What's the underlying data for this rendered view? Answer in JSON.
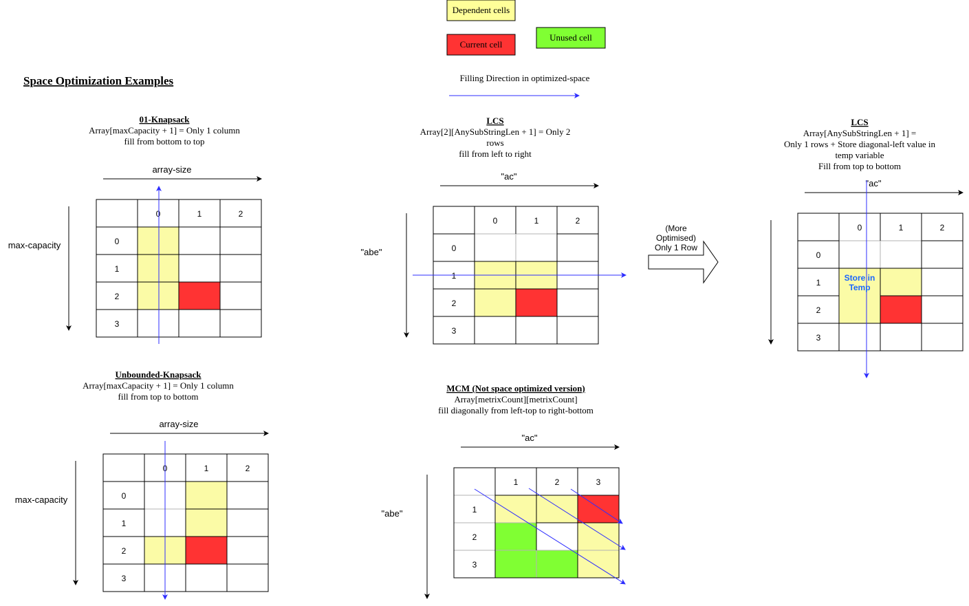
{
  "colors": {
    "dependent": "#ffff99",
    "dependent_in_grid": "#fbfba6",
    "current": "#ff3333",
    "unused": "#80ff33",
    "arrow_blue": "#2d2dff",
    "store_text": "#1a66ff",
    "grid_line": "#000000",
    "light_line": "#b3b3b3"
  },
  "legend": {
    "dependent": "Dependent cells",
    "current": "Current cell",
    "unused": "Unused cell",
    "filling_direction": "Filling Direction in optimized-space"
  },
  "heading": "Space Optimization Examples",
  "knapsack01": {
    "title": "01-Knapsack",
    "line1": "Array[maxCapacity + 1] = Only 1 column",
    "line2": "fill from bottom to top",
    "x_axis_label": "array-size",
    "y_axis_label": "max-capacity",
    "col_headers": [
      "0",
      "1",
      "2"
    ],
    "row_headers": [
      "0",
      "1",
      "2",
      "3"
    ]
  },
  "unbounded": {
    "title": "Unbounded-Knapsack",
    "line1": "Array[maxCapacity + 1] = Only 1 column",
    "line2": "fill from top to bottom",
    "x_axis_label": "array-size",
    "y_axis_label": "max-capacity",
    "col_headers": [
      "0",
      "1",
      "2"
    ],
    "row_headers": [
      "0",
      "1",
      "2",
      "3"
    ]
  },
  "lcs1": {
    "title": "LCS",
    "line1": "Array[2][AnySubStringLen + 1] = Only 2",
    "line2": "rows",
    "line3": "fill from left to right",
    "x_axis_label": "\"ac\"",
    "y_axis_label": "\"abe\"",
    "col_headers": [
      "0",
      "1",
      "2"
    ],
    "row_headers": [
      "0",
      "1",
      "2",
      "3"
    ]
  },
  "more_optimised": {
    "line1": "(More",
    "line2": "Optimised)",
    "line3": "Only 1 Row"
  },
  "lcs2": {
    "title": "LCS",
    "line1": "Array[AnySubStringLen + 1] =",
    "line2": "Only 1 rows + Store diagonal-left value in",
    "line3": "temp variable",
    "line4": "Fill from top to bottom",
    "x_axis_label": "\"ac\"",
    "col_headers": [
      "0",
      "1",
      "2"
    ],
    "row_headers": [
      "0",
      "1",
      "2",
      "3"
    ],
    "store_line1": "Store in",
    "store_line2": "Temp"
  },
  "mcm": {
    "title": "MCM (Not space optimized version)",
    "line1": "Array[metrixCount][metrixCount]",
    "line2": "fill diagonally from left-top to right-bottom",
    "x_axis_label": "\"ac\"",
    "y_axis_label": "\"abe\"",
    "col_headers": [
      "1",
      "2",
      "3"
    ],
    "row_headers": [
      "1",
      "2",
      "3"
    ]
  }
}
